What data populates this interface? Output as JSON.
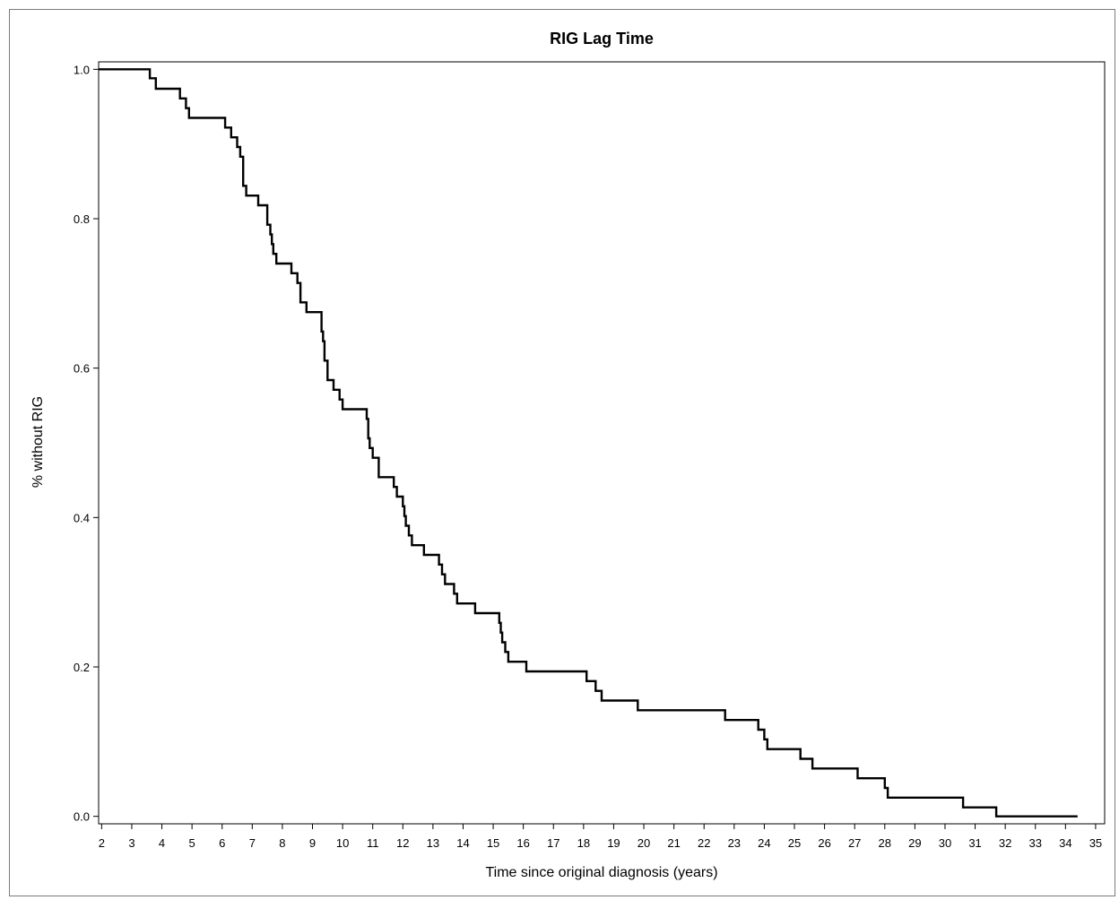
{
  "chart_data": {
    "type": "line",
    "subtype": "step",
    "title": "RIG Lag Time",
    "xlabel": "Time since original diagnosis (years)",
    "ylabel": "% without RIG",
    "xlim": [
      1.9,
      35.3
    ],
    "ylim": [
      -0.01,
      1.01
    ],
    "xticks": [
      2,
      3,
      4,
      5,
      6,
      7,
      8,
      9,
      10,
      11,
      12,
      13,
      14,
      15,
      16,
      17,
      18,
      19,
      20,
      21,
      22,
      23,
      24,
      25,
      26,
      27,
      28,
      29,
      30,
      31,
      32,
      33,
      34,
      35
    ],
    "yticks": [
      0.0,
      0.2,
      0.4,
      0.6,
      0.8,
      1.0
    ],
    "ytick_labels": [
      "0.0",
      "0.2",
      "0.4",
      "0.6",
      "0.8",
      "1.0"
    ],
    "grid": false,
    "legend": "none",
    "line_color": "#000000",
    "series": [
      {
        "x": [
          1.9,
          3.6,
          3.8,
          4.6,
          4.8,
          4.9,
          6.1,
          6.3,
          6.5,
          6.6,
          6.7,
          6.8,
          7.2,
          7.5,
          7.6,
          7.65,
          7.7,
          7.8,
          8.3,
          8.5,
          8.6,
          8.8,
          9.3,
          9.35,
          9.4,
          9.5,
          9.7,
          9.9,
          10.0,
          10.8,
          10.85,
          10.9,
          11.0,
          11.2,
          11.7,
          11.8,
          12.0,
          12.05,
          12.1,
          12.2,
          12.3,
          12.7,
          13.2,
          13.3,
          13.4,
          13.7,
          13.8,
          14.4,
          15.2,
          15.25,
          15.3,
          15.4,
          15.5,
          16.1,
          18.1,
          18.4,
          18.6,
          19.8,
          22.7,
          23.8,
          24.0,
          24.1,
          25.2,
          25.6,
          27.1,
          28.0,
          28.1,
          30.6,
          31.7,
          32.5,
          32.9,
          33.3,
          34.4
        ],
        "y": [
          1.0,
          0.988,
          0.974,
          0.961,
          0.948,
          0.935,
          0.922,
          0.909,
          0.896,
          0.883,
          0.844,
          0.831,
          0.818,
          0.792,
          0.779,
          0.766,
          0.753,
          0.74,
          0.727,
          0.714,
          0.688,
          0.675,
          0.649,
          0.636,
          0.61,
          0.584,
          0.571,
          0.558,
          0.545,
          0.532,
          0.506,
          0.493,
          0.48,
          0.454,
          0.441,
          0.428,
          0.415,
          0.402,
          0.389,
          0.376,
          0.363,
          0.35,
          0.337,
          0.324,
          0.311,
          0.298,
          0.285,
          0.272,
          0.259,
          0.246,
          0.233,
          0.22,
          0.207,
          0.194,
          0.181,
          0.168,
          0.155,
          0.142,
          0.129,
          0.116,
          0.103,
          0.09,
          0.077,
          0.064,
          0.051,
          0.038,
          0.025,
          0.012,
          0.0,
          0.0,
          0.0,
          0.0,
          0.0
        ]
      }
    ]
  }
}
